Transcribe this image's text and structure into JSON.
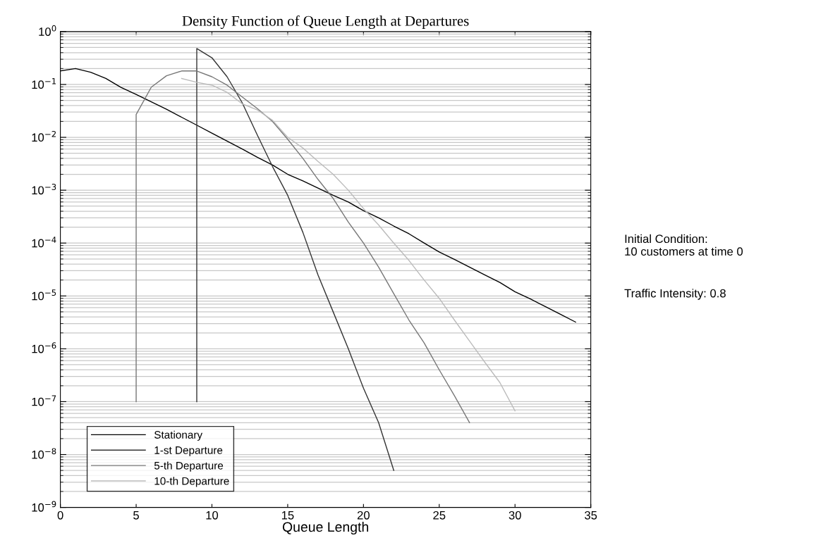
{
  "chart_data": {
    "type": "line",
    "title": "Density Function of Queue Length at Departures",
    "xlabel": "Queue Length",
    "annotations": [
      "Initial Condition:\n10 customers at time 0",
      "Traffic Intensity: 0.8"
    ],
    "log": "y",
    "grid": "y",
    "legend": "bottom left",
    "marker": "none",
    "line_style": "solid",
    "xlim": [
      0,
      35
    ],
    "xticks": [
      0,
      5,
      10,
      15,
      20,
      25,
      30,
      35
    ],
    "ylim": [
      1e-09,
      1
    ],
    "yticks": [
      {
        "value": 1e-09,
        "label": "10$^{−9}$"
      },
      {
        "value": 1e-08,
        "label": "10$^{−8}$"
      },
      {
        "value": 1e-07,
        "label": "10$^{−7}$"
      },
      {
        "value": 1e-06,
        "label": "10$^{−6}$"
      },
      {
        "value": 1e-05,
        "label": "10$^{−5}$"
      },
      {
        "value": 0.0001,
        "label": "10$^{−4}$"
      },
      {
        "value": 0.001,
        "label": "10$^{−3}$"
      },
      {
        "value": 0.01,
        "label": "10$^{−2}$"
      },
      {
        "value": 0.1,
        "label": "10$^{−1}$"
      },
      {
        "value": 1,
        "label": "10$^{0}$"
      }
    ],
    "series": [
      {
        "name": "Stationary",
        "color": "#000000",
        "x": [
          0,
          1,
          2,
          3,
          4,
          5,
          6,
          7,
          8,
          9,
          10,
          11,
          12,
          13,
          14,
          15,
          16,
          17,
          18,
          19,
          20,
          21,
          22,
          23,
          24,
          25,
          26,
          27,
          28,
          29,
          30,
          31,
          32,
          33,
          34
        ],
        "values": [
          0.18,
          0.2,
          0.17,
          0.13,
          0.088,
          0.065,
          0.047,
          0.034,
          0.024,
          0.017,
          0.012,
          0.0085,
          0.006,
          0.0042,
          0.003,
          0.002,
          0.0015,
          0.0011,
          0.0008,
          0.0006,
          0.00041,
          0.0003,
          0.00021,
          0.00015,
          0.0001,
          6.8e-05,
          4.9e-05,
          3.5e-05,
          2.5e-05,
          1.8e-05,
          1.2e-05,
          8.8e-06,
          6.3e-06,
          4.5e-06,
          3.2e-06
        ]
      },
      {
        "name": "1-st Departure",
        "color": "#333333",
        "x": [
          9,
          9,
          10,
          11,
          12,
          13,
          14,
          15,
          16,
          17,
          18,
          19,
          20,
          21,
          22
        ],
        "values": [
          1e-07,
          0.48,
          0.32,
          0.14,
          0.045,
          0.011,
          0.0028,
          0.0008,
          0.00016,
          2.5e-05,
          5e-06,
          1e-06,
          1.8e-07,
          4e-08,
          5e-09
        ]
      },
      {
        "name": "5-th Departure",
        "color": "#777777",
        "x": [
          5,
          5,
          6,
          7,
          8,
          9,
          10,
          11,
          12,
          13,
          14,
          15,
          16,
          17,
          18,
          19,
          20,
          21,
          22,
          23,
          24,
          25,
          26,
          27
        ],
        "values": [
          1e-07,
          0.027,
          0.089,
          0.146,
          0.18,
          0.18,
          0.14,
          0.097,
          0.058,
          0.035,
          0.02,
          0.0092,
          0.004,
          0.0016,
          0.0007,
          0.00025,
          0.0001,
          3.5e-05,
          1.1e-05,
          3.5e-06,
          1.3e-06,
          4e-07,
          1.3e-07,
          4e-08
        ]
      },
      {
        "name": "10-th Departure",
        "color": "#bbbbbb",
        "x": [
          8,
          9,
          10,
          11,
          12,
          13,
          14,
          15,
          16,
          17,
          18,
          19,
          20,
          21,
          22,
          23,
          24,
          25,
          26,
          27,
          28,
          29,
          30
        ],
        "values": [
          0.13,
          0.11,
          0.097,
          0.071,
          0.043,
          0.033,
          0.021,
          0.01,
          0.0063,
          0.0035,
          0.002,
          0.001,
          0.00045,
          0.00022,
          0.0001,
          4.7e-05,
          2e-05,
          9e-06,
          3.5e-06,
          1.4e-06,
          5.6e-07,
          2.3e-07,
          6.7e-08
        ]
      }
    ]
  }
}
